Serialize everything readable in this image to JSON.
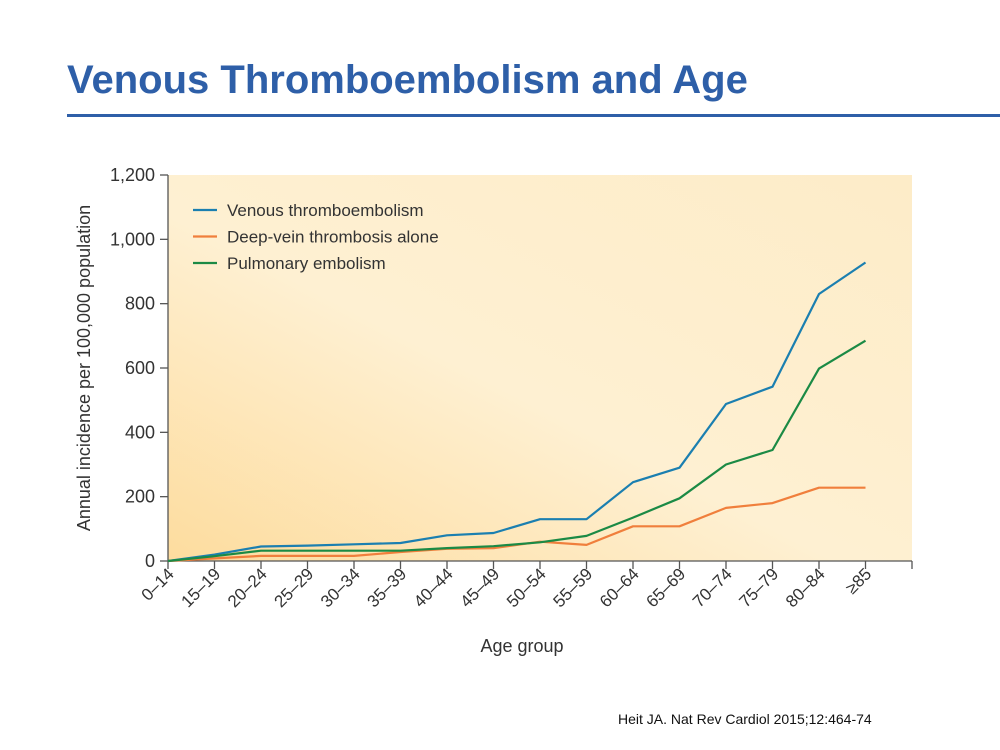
{
  "slide": {
    "title": "Venous Thromboembolism and Age",
    "citation": "Heit JA. Nat Rev Cardiol 2015;12:464-74"
  },
  "chart_data": {
    "type": "line",
    "title": "",
    "xlabel": "Age group",
    "ylabel": "Annual incidence per 100,000 population",
    "ylim": [
      0,
      1200
    ],
    "yticks": [
      0,
      200,
      400,
      600,
      800,
      1000,
      1200
    ],
    "ytick_labels": [
      "0",
      "200",
      "400",
      "600",
      "800",
      "1,000",
      "1,200"
    ],
    "categories": [
      "0–14",
      "15–19",
      "20–24",
      "25–29",
      "30–34",
      "35–39",
      "40–44",
      "45–49",
      "50–54",
      "55–59",
      "60–64",
      "65–69",
      "70–74",
      "75–79",
      "80–84",
      "≥85"
    ],
    "grid": false,
    "legend_position": "top-left",
    "series": [
      {
        "name": "Venous thromboembolism",
        "color": "#1b7fb0",
        "values": [
          0,
          20,
          45,
          48,
          52,
          56,
          80,
          87,
          130,
          130,
          245,
          290,
          488,
          542,
          830,
          928
        ]
      },
      {
        "name": "Deep-vein thrombosis alone",
        "color": "#f07f3c",
        "values": [
          0,
          8,
          16,
          16,
          16,
          28,
          38,
          40,
          60,
          50,
          108,
          108,
          165,
          180,
          228,
          228
        ]
      },
      {
        "name": "Pulmonary embolism",
        "color": "#1b8a45",
        "values": [
          0,
          15,
          32,
          32,
          32,
          32,
          40,
          46,
          58,
          78,
          135,
          195,
          300,
          345,
          598,
          685
        ]
      }
    ]
  }
}
